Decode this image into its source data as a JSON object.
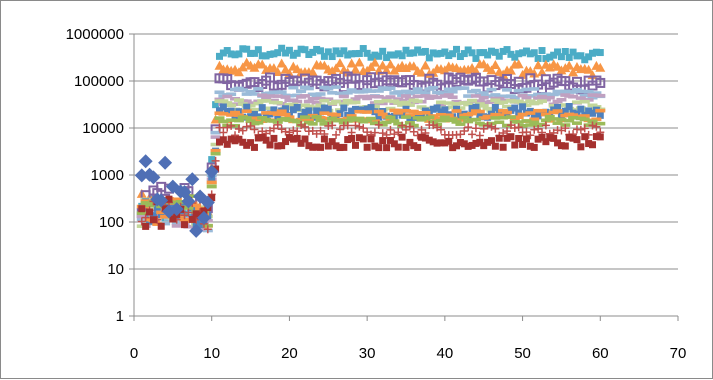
{
  "chart_data": {
    "type": "scatter",
    "title": "",
    "xlabel": "",
    "ylabel": "",
    "x_range": [
      0,
      70
    ],
    "x_ticks": [
      0,
      10,
      20,
      30,
      40,
      50,
      60,
      70
    ],
    "y_scale": "log",
    "y_range": [
      1,
      1000000
    ],
    "y_ticks": [
      1,
      10,
      100,
      1000,
      10000,
      100000,
      1000000
    ],
    "y_tick_labels": [
      "1",
      "10",
      "100",
      "1000",
      "10000",
      "100000",
      "1000000"
    ],
    "grid": "horizontal",
    "legend": "none",
    "x_points": {
      "start": 1,
      "end": 60,
      "step": 0.5
    },
    "series": [
      {
        "color": "#4bacc6",
        "marker": "square",
        "levels": [
          180,
          120,
          400000
        ],
        "jitter": 0.1
      },
      {
        "color": "#f79646",
        "marker": "triangle",
        "levels": [
          200,
          130,
          190000
        ],
        "jitter": 0.12
      },
      {
        "color": "#8064a2",
        "marker": "hatch",
        "levels": [
          300,
          150,
          95000
        ],
        "jitter": 0.12
      },
      {
        "color": "#9bbbd9",
        "marker": "dash",
        "levels": [
          150,
          110,
          60000
        ],
        "jitter": 0.1
      },
      {
        "color": "#c0a0c0",
        "marker": "dash",
        "levels": [
          140,
          110,
          40000
        ],
        "jitter": 0.1
      },
      {
        "color": "#c3d69b",
        "marker": "dash",
        "levels": [
          160,
          110,
          30000
        ],
        "jitter": 0.12
      },
      {
        "color": "#4f81bd",
        "marker": "square",
        "levels": [
          200,
          120,
          22000
        ],
        "jitter": 0.12
      },
      {
        "color": "#f79646",
        "marker": "dash",
        "levels": [
          170,
          120,
          18000
        ],
        "jitter": 0.12
      },
      {
        "color": "#9bbb59",
        "marker": "dash",
        "levels": [
          220,
          140,
          14000
        ],
        "jitter": 0.1
      },
      {
        "color": "#c0504d",
        "marker": "plus",
        "levels": [
          150,
          110,
          9000
        ],
        "jitter": 0.12
      },
      {
        "color": "#a5302e",
        "marker": "square",
        "levels": [
          160,
          110,
          5000
        ],
        "jitter": 0.12
      },
      {
        "color": "#4f6fb5",
        "marker": "diamond",
        "levels": [
          500,
          200,
          1300
        ],
        "jitter": 0.25,
        "first_range_only": true
      }
    ]
  }
}
